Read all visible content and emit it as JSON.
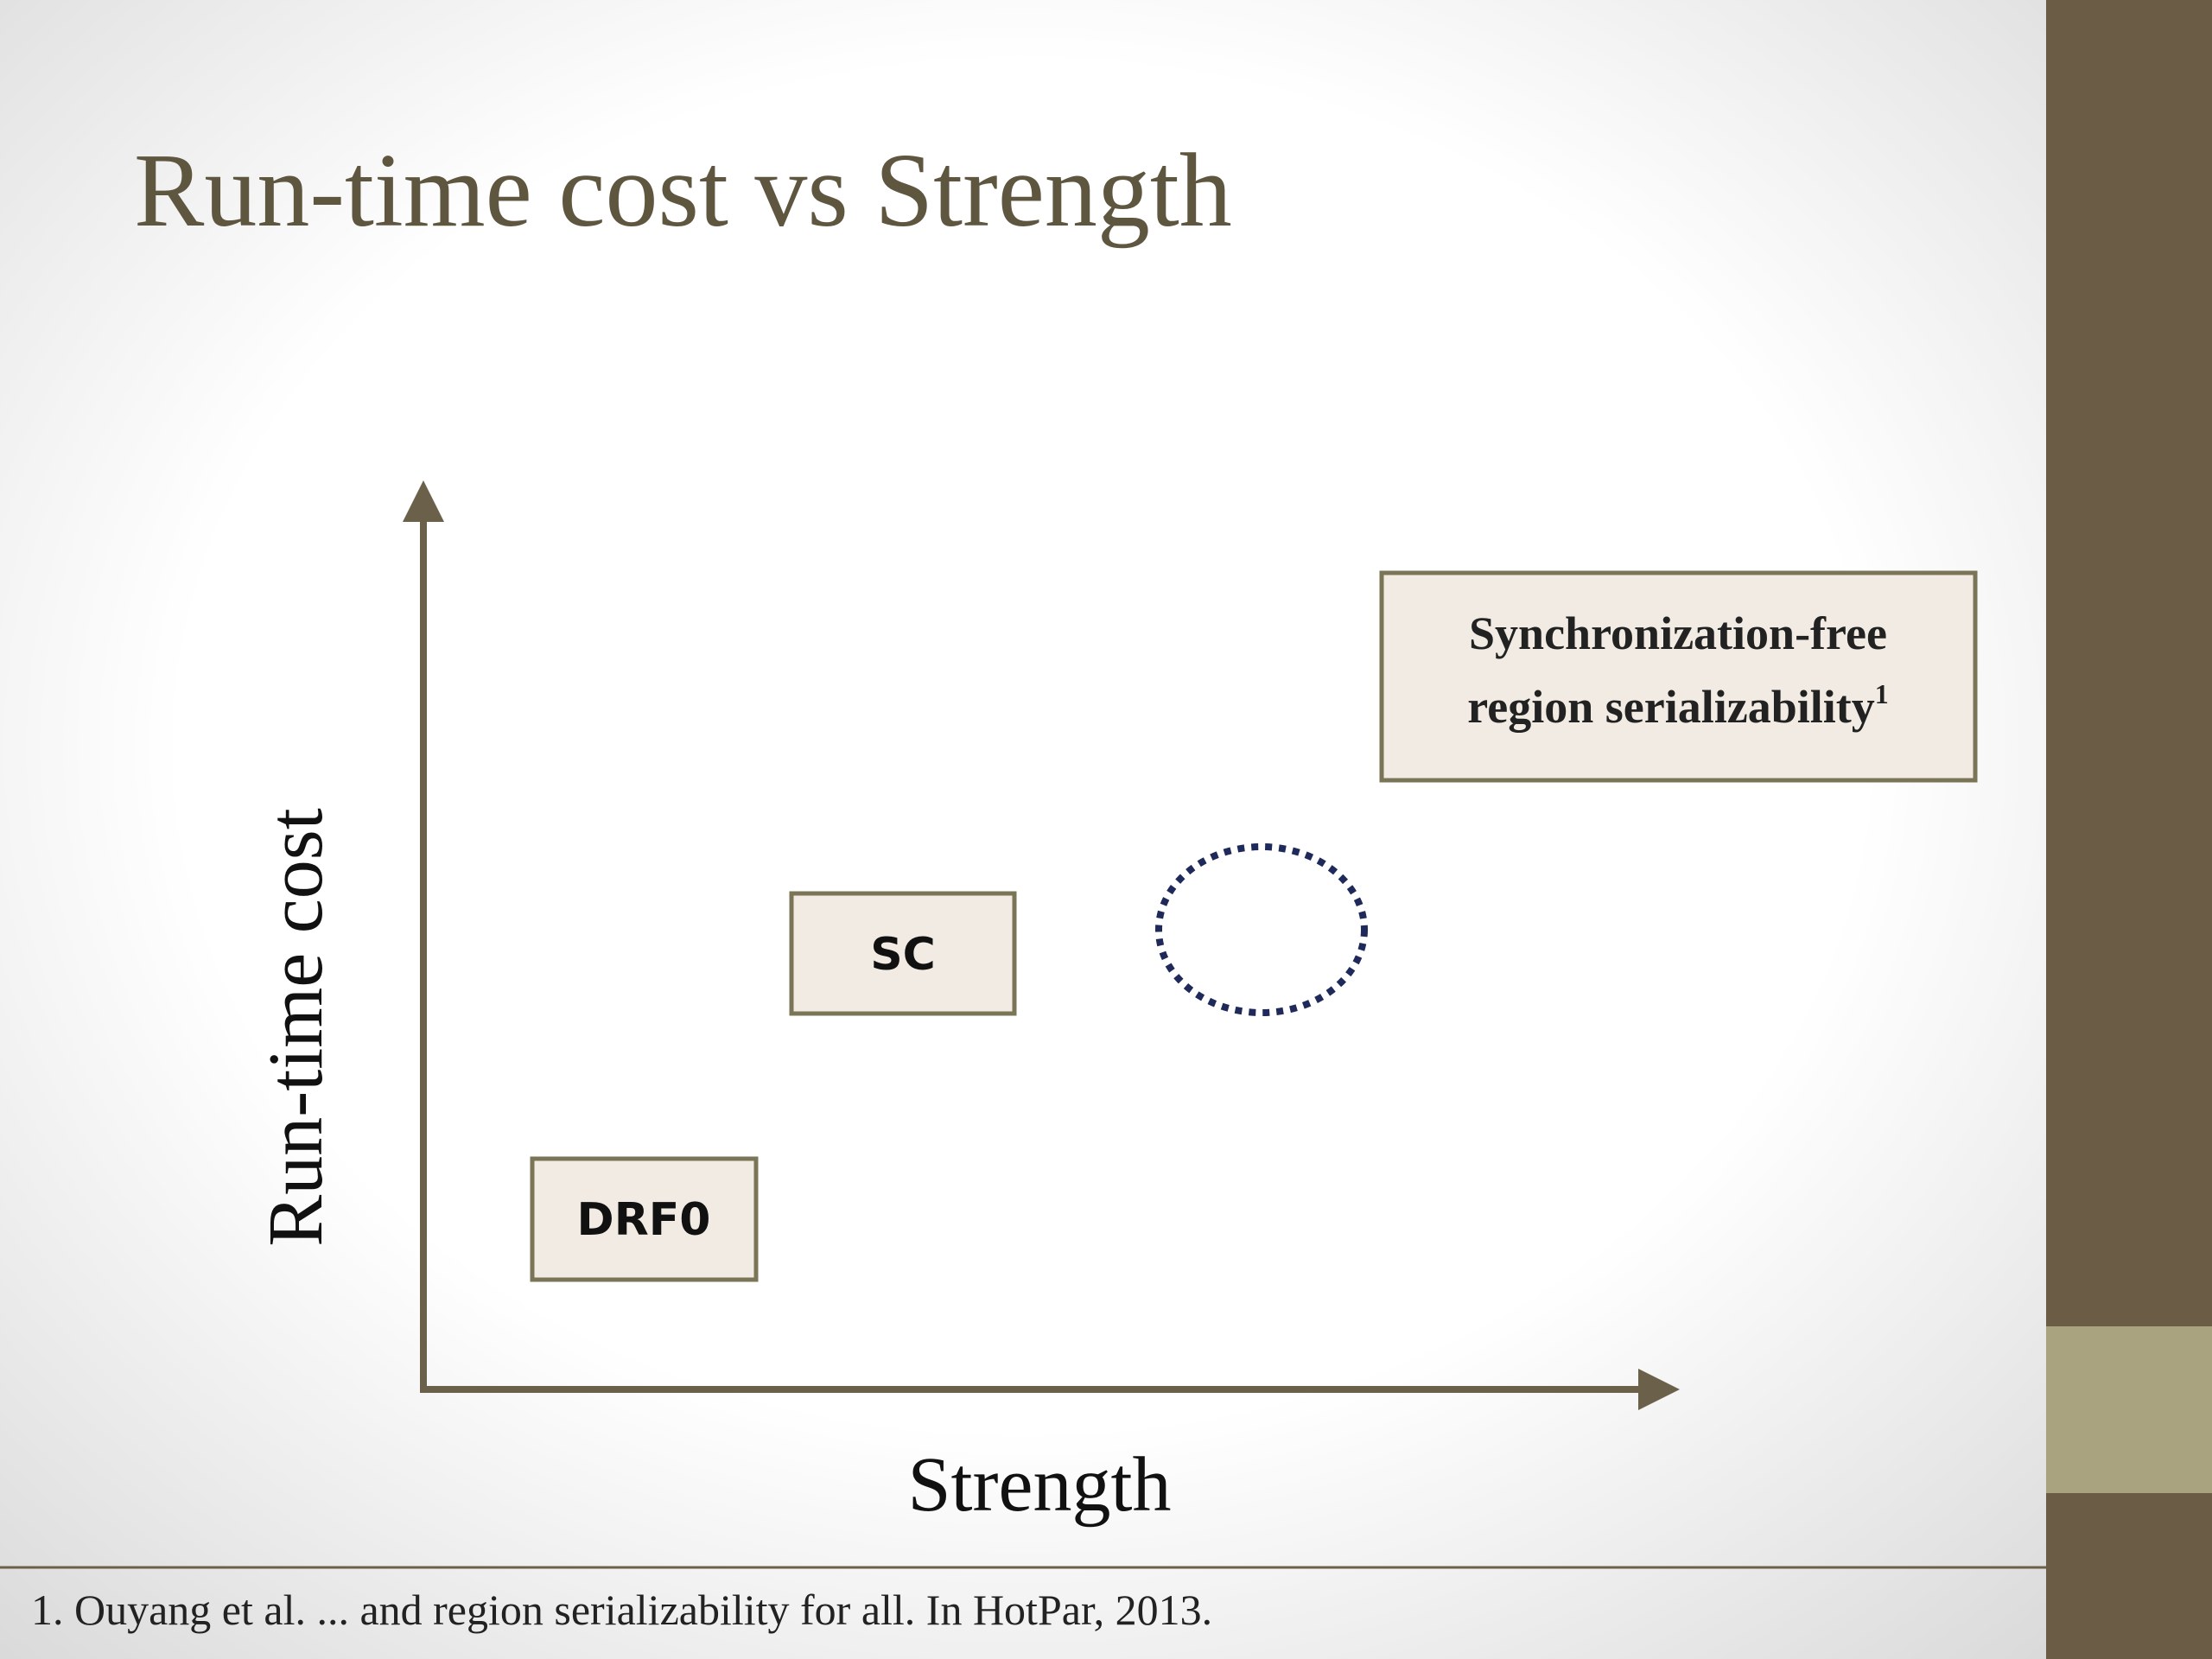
{
  "title": "Run-time cost vs Strength",
  "axes": {
    "y_label": "Run-time cost",
    "x_label": "Strength"
  },
  "nodes": [
    {
      "label": "DRF0"
    },
    {
      "label": "SC"
    },
    {
      "lines": [
        "Synchronization-free",
        "region serializability"
      ],
      "superscript": "1"
    }
  ],
  "footnote": "1. Ouyang et al. ... and region serializability for all. In HotPar, 2013."
}
